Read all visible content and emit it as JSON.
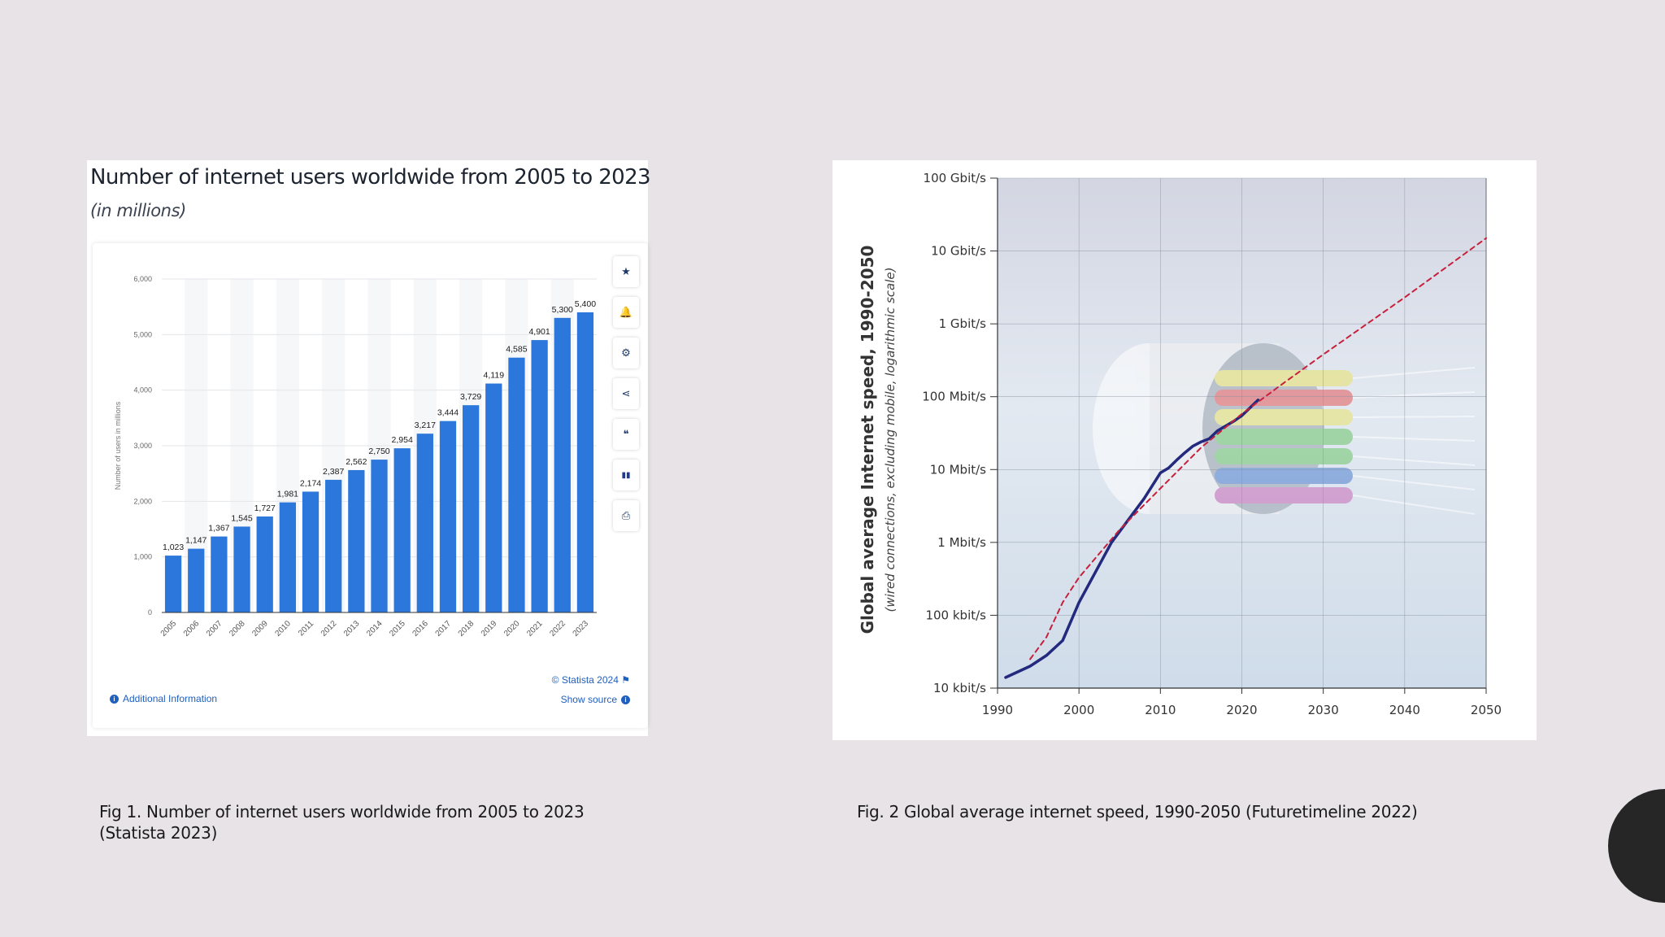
{
  "figure1": {
    "title": "Number of internet users worldwide from 2005 to 2023",
    "subtitle": "(in millions)",
    "toolbar": [
      {
        "name": "star-icon",
        "glyph": "★"
      },
      {
        "name": "bell-icon",
        "glyph": "🔔"
      },
      {
        "name": "gear-icon",
        "glyph": "⚙"
      },
      {
        "name": "share-icon",
        "glyph": "⋖"
      },
      {
        "name": "quote-icon",
        "glyph": "❝"
      },
      {
        "name": "flag-icon",
        "glyph": "▮▮"
      },
      {
        "name": "print-icon",
        "glyph": "⎙"
      }
    ],
    "additional_info": "Additional Information",
    "copyright": "© Statista 2024",
    "show_source": "Show source"
  },
  "figure2": {},
  "captions": {
    "fig1": "Fig 1. Number of internet users worldwide from 2005 to 2023 (Statista 2023)",
    "fig2": "Fig. 2 Global average internet speed, 1990-2050 (Futuretimeline 2022)"
  },
  "chart_data": [
    {
      "type": "bar",
      "title": "Number of internet users worldwide from 2005 to 2023",
      "subtitle": "(in millions)",
      "xlabel": "",
      "ylabel": "Number of users in millions",
      "categories": [
        "2005",
        "2006",
        "2007",
        "2008",
        "2009",
        "2010",
        "2011",
        "2012",
        "2013",
        "2014",
        "2015",
        "2016",
        "2017",
        "2018",
        "2019",
        "2020",
        "2021",
        "2022",
        "2023"
      ],
      "values": [
        1023,
        1147,
        1367,
        1545,
        1727,
        1981,
        2174,
        2387,
        2562,
        2750,
        2954,
        3217,
        3444,
        3729,
        4119,
        4585,
        4901,
        5300,
        5400
      ],
      "value_labels": [
        "1,023",
        "1,147",
        "1,367",
        "1,545",
        "1,727",
        "1,981",
        "2,174",
        "2,387",
        "2,562",
        "2,750",
        "2,954",
        "3,217",
        "3,444",
        "3,729",
        "4,119",
        "4,585",
        "4,901",
        "5,300",
        "5,400"
      ],
      "ylim": [
        0,
        6000
      ],
      "yticks": [
        0,
        1000,
        2000,
        3000,
        4000,
        5000,
        6000
      ],
      "ytick_labels": [
        "0",
        "1,000",
        "2,000",
        "3,000",
        "4,000",
        "5,000",
        "6,000"
      ],
      "grid": true,
      "bar_color": "#2b77db"
    },
    {
      "type": "line",
      "title": "",
      "ylabel": "Global average Internet speed, 1990-2050",
      "ylabel_sub": "(wired connections, excluding mobile, logarithmic scale)",
      "xlabel": "",
      "xlim": [
        1990,
        2050
      ],
      "xticks": [
        1990,
        2000,
        2010,
        2020,
        2030,
        2040,
        2050
      ],
      "yscale": "log",
      "ylim_kbit_s": [
        10,
        100000000
      ],
      "yticks_kbit_s": [
        10,
        100,
        1000,
        10000,
        100000,
        1000000,
        10000000,
        100000000
      ],
      "ytick_labels": [
        "10 kbit/s",
        "100 kbit/s",
        "1 Mbit/s",
        "10 Mbit/s",
        "100 Mbit/s",
        "1 Gbit/s",
        "10 Gbit/s",
        "100 Gbit/s"
      ],
      "grid": true,
      "series": [
        {
          "style": "solid",
          "color": "#232a7e",
          "x": [
            1991,
            1994,
            1996,
            1998,
            2000,
            2004,
            2008,
            2010,
            2011,
            2012,
            2013,
            2014,
            2015,
            2016,
            2017,
            2019,
            2020,
            2022
          ],
          "y": [
            14,
            20,
            28,
            45,
            150,
            1000,
            4000,
            9000,
            10500,
            13500,
            17000,
            21000,
            24000,
            26500,
            34000,
            46000,
            55000,
            90000
          ]
        },
        {
          "style": "dashed",
          "color": "#c7203c",
          "x": [
            1994,
            1996,
            1998,
            2000,
            2005,
            2010,
            2015,
            2020,
            2025,
            2030,
            2040,
            2050
          ],
          "y": [
            25,
            50,
            150,
            330,
            1500,
            5500,
            20000,
            58000,
            150000,
            380000,
            2300000,
            15000000
          ]
        }
      ]
    }
  ]
}
